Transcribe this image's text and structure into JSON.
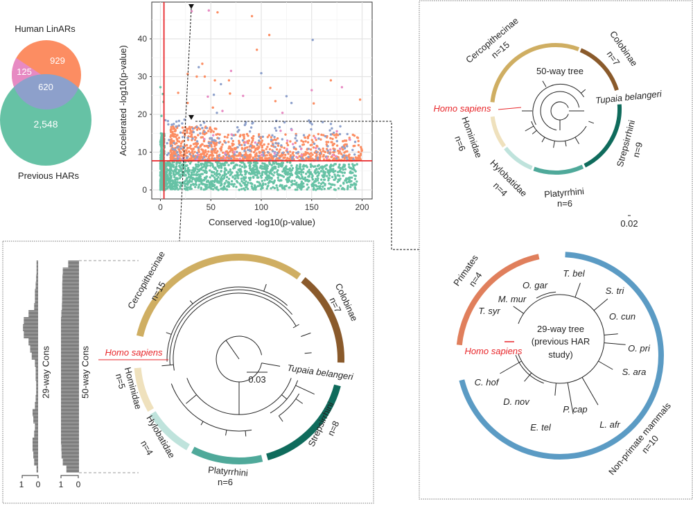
{
  "venn": {
    "top_label": "Human LinARs",
    "bottom_label": "Previous HARs",
    "linars_only": "929",
    "linars_pink": "125",
    "overlap": "620",
    "previous_only": "2,548",
    "colors": {
      "orange": "#fc8d62",
      "pink": "#e78ac3",
      "blue": "#8da0cb",
      "green": "#66c2a5"
    }
  },
  "chart_data": {
    "type": "scatter",
    "xlabel": "Conserved -log10(p-value)",
    "ylabel": "Accelerated -log10(p-value)",
    "xlim": [
      0,
      200
    ],
    "ylim": [
      0,
      48
    ],
    "xticks": [
      "0",
      "50",
      "100",
      "150",
      "200"
    ],
    "yticks": [
      "0",
      "10",
      "20",
      "30",
      "40"
    ],
    "grid": true,
    "legend": "none",
    "thresholds": {
      "x": 3.5,
      "y": 7.7,
      "color": "#e8262a"
    },
    "colors": {
      "green": "#66c2a5",
      "orange": "#fc8d62",
      "blue": "#8da0cb",
      "pink": "#e78ac3"
    },
    "cloud_regions": [
      {
        "color": "green",
        "x": [
          0,
          195
        ],
        "y": [
          0,
          7.7
        ]
      },
      {
        "color": "orange",
        "x": [
          10,
          200
        ],
        "y": [
          7.8,
          16
        ]
      },
      {
        "color": "blue",
        "x": [
          3,
          195
        ],
        "y": [
          7.8,
          19
        ]
      },
      {
        "color": "green",
        "x": [
          0,
          4
        ],
        "y": [
          7.8,
          15
        ]
      }
    ],
    "points": [
      {
        "x": 31,
        "y": 47.3,
        "c": "pink"
      },
      {
        "x": 48,
        "y": 47.5,
        "c": "pink"
      },
      {
        "x": 56.6,
        "y": 47,
        "c": "orange"
      },
      {
        "x": 90.8,
        "y": 46,
        "c": "orange"
      },
      {
        "x": 108,
        "y": 41,
        "c": "orange"
      },
      {
        "x": 151,
        "y": 39.7,
        "c": "blue"
      },
      {
        "x": 95.7,
        "y": 37.1,
        "c": "orange"
      },
      {
        "x": 41.5,
        "y": 33.4,
        "c": "orange"
      },
      {
        "x": 38,
        "y": 32.5,
        "c": "blue"
      },
      {
        "x": 70,
        "y": 31.5,
        "c": "pink"
      },
      {
        "x": 100,
        "y": 30.9,
        "c": "blue"
      },
      {
        "x": 27,
        "y": 30.7,
        "c": "orange"
      },
      {
        "x": 36,
        "y": 30,
        "c": "orange"
      },
      {
        "x": 44,
        "y": 30,
        "c": "orange"
      },
      {
        "x": 54,
        "y": 29,
        "c": "orange"
      },
      {
        "x": 60,
        "y": 28,
        "c": "blue"
      },
      {
        "x": 68,
        "y": 29,
        "c": "orange"
      },
      {
        "x": 109,
        "y": 27,
        "c": "orange"
      },
      {
        "x": 169,
        "y": 29,
        "c": "orange"
      },
      {
        "x": 180,
        "y": 27.2,
        "c": "pink"
      },
      {
        "x": 150,
        "y": 26.4,
        "c": "pink"
      },
      {
        "x": 69,
        "y": 25.5,
        "c": "orange"
      },
      {
        "x": 82,
        "y": 24.9,
        "c": "pink"
      },
      {
        "x": 53,
        "y": 25.2,
        "c": "blue"
      },
      {
        "x": 47,
        "y": 24.7,
        "c": "pink"
      },
      {
        "x": 125,
        "y": 24.8,
        "c": "blue"
      },
      {
        "x": 130,
        "y": 23,
        "c": "blue"
      },
      {
        "x": 114,
        "y": 23.5,
        "c": "orange"
      },
      {
        "x": 152,
        "y": 22.9,
        "c": "orange"
      },
      {
        "x": 198,
        "y": 23.9,
        "c": "orange"
      },
      {
        "x": 52,
        "y": 21.8,
        "c": "orange"
      },
      {
        "x": 61.5,
        "y": 20.9,
        "c": "pink"
      },
      {
        "x": 56,
        "y": 20.4,
        "c": "blue"
      },
      {
        "x": 121,
        "y": 20.4,
        "c": "pink"
      },
      {
        "x": 17.6,
        "y": 25.7,
        "c": "orange"
      },
      {
        "x": 27,
        "y": 23,
        "c": "orange"
      },
      {
        "x": 170,
        "y": 16.3,
        "c": "blue"
      },
      {
        "x": 175,
        "y": 15.5,
        "c": "pink"
      },
      {
        "x": 188,
        "y": 13.3,
        "c": "pink"
      },
      {
        "x": 0,
        "y": 27.2,
        "c": "green"
      },
      {
        "x": 2.4,
        "y": 25.4,
        "c": "green"
      },
      {
        "x": 3,
        "y": 23.3,
        "c": "green"
      },
      {
        "x": 1,
        "y": 19.6,
        "c": "green"
      }
    ]
  },
  "tracks": {
    "t29_label": "29-way Cons",
    "t50_label": "50-way Cons",
    "scale_one": "1",
    "scale_zero": "0",
    "t29_profile": [
      0.1,
      0.1,
      0.12,
      0.15,
      0.2,
      0.2,
      0.25,
      0.6,
      0.9,
      0.95,
      0.9,
      0.6,
      0.5,
      0.4,
      0.2,
      0.15,
      0.15,
      0.12,
      0.12,
      0.15,
      0.2,
      0.35,
      0.3,
      0.2,
      0.25,
      0.35,
      0.35,
      0.3,
      0.25,
      0.1
    ],
    "t50_profile": [
      0.6,
      0.9,
      0.92,
      0.93,
      0.93,
      0.94,
      0.95,
      0.98,
      1,
      1,
      1,
      1,
      1,
      1,
      1,
      1,
      1,
      1,
      1,
      1,
      1,
      1,
      1,
      1,
      1,
      1,
      0.98,
      0.97,
      0.9,
      0.7
    ]
  },
  "clade_colors": {
    "cercopithecinae": "#cfae62",
    "colobinae": "#8a5a2b",
    "strepsirrhini": "#0f6b5c",
    "platyrrhini": "#4fa99a",
    "hylobatidae": "#bfe3dc",
    "hominidae": "#efe1bd",
    "primates": "#e07f5c",
    "nonprimate": "#5b9bc4",
    "human": "#e8262a"
  },
  "tree_main": {
    "cercopithecinae": "Cercopithecinae",
    "cercopithecinae_n": "n=15",
    "colobinae": "Colobinae",
    "colobinae_n": "n=7",
    "homo": "Homo sapiens",
    "tupaia": "Tupaia belangeri",
    "hominidae": "Hominidae",
    "hominidae_n": "n=5",
    "hylobatidae": "Hylobatidae",
    "hylobatidae_n": "n=4",
    "platyrrhini": "Platyrrhini",
    "platyrrhini_n": "n=6",
    "strepsirrhini": "Strepsirrhini",
    "strepsirrhini_n": "n=8",
    "scale": "0.03"
  },
  "tree_50": {
    "title": "50-way tree",
    "cercopithecinae": "Cercopithecinae",
    "cercopithecinae_n": "n=15",
    "colobinae": "Colobinae",
    "colobinae_n": "n=7",
    "homo": "Homo sapiens",
    "tupaia": "Tupaia belangeri",
    "hominidae": "Hominidae",
    "hominidae_n": "n=6",
    "hylobatidae": "Hylobatidae",
    "hylobatidae_n": "n=4",
    "platyrrhini": "Platyrrhini",
    "platyrrhini_n": "n=6",
    "strepsirrhini": "Strepsirrhini",
    "strepsirrhini_n": "n=9",
    "scale": "0.02"
  },
  "tree_29": {
    "title_1": "29-way tree",
    "title_2": "(previous HAR",
    "title_3": "study)",
    "primates": "Primates",
    "primates_n": "n=4",
    "nonprimate": "Non-primate mammals",
    "nonprimate_n": "n=10",
    "homo": "Homo sapiens",
    "species": [
      "T. bel",
      "S. tri",
      "O. gar",
      "M. mur",
      "T. syr",
      "O. cun",
      "O. pri",
      "S. ara",
      "C. hof",
      "D. nov",
      "E. tel",
      "P. cap",
      "L. afr"
    ]
  }
}
